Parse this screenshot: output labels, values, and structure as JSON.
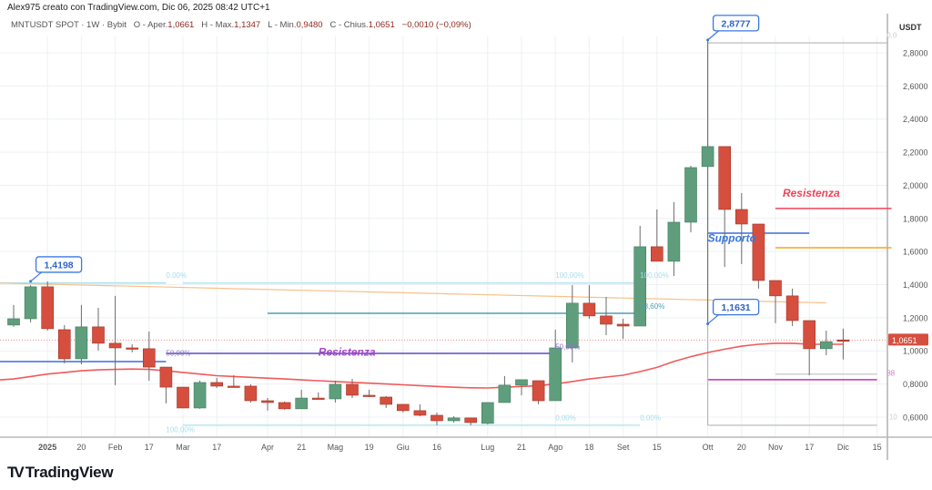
{
  "header": {
    "credit": "Alex975 creato con TradingView.com, Dic 06, 2025 08:42 UTC+1",
    "symbol": "MNTUSDT SPOT · 1W · Bybit",
    "open_label": "O - Aper.",
    "open": "1,0661",
    "high_label": "H - Max.",
    "high": "1,1347",
    "low_label": "L - Min.",
    "low": "0,9480",
    "close_label": "C - Chius.",
    "close": "1,0651",
    "change": "−0,0010 (−0,09%)"
  },
  "price_axis": {
    "unit": "USDT",
    "ticks": [
      "2,8000",
      "2,6000",
      "2,4000",
      "2,2000",
      "2,0000",
      "1,8000",
      "1,6000",
      "1,4000",
      "1,2000",
      "1,0000",
      "0,8000",
      "0,6000"
    ],
    "current_price_label": "1,0651",
    "current_price": 1.0651
  },
  "time_axis": {
    "ticks": [
      {
        "label": "2025",
        "date": "2025-01-06"
      },
      {
        "label": "20",
        "date": "2025-01-20"
      },
      {
        "label": "Feb",
        "date": "2025-02-03"
      },
      {
        "label": "17",
        "date": "2025-02-17"
      },
      {
        "label": "Mar",
        "date": "2025-03-03"
      },
      {
        "label": "17",
        "date": "2025-03-17"
      },
      {
        "label": "Apr",
        "date": "2025-04-07"
      },
      {
        "label": "21",
        "date": "2025-04-21"
      },
      {
        "label": "Mag",
        "date": "2025-05-05"
      },
      {
        "label": "19",
        "date": "2025-05-19"
      },
      {
        "label": "Giu",
        "date": "2025-06-02"
      },
      {
        "label": "16",
        "date": "2025-06-16"
      },
      {
        "label": "Lug",
        "date": "2025-07-07"
      },
      {
        "label": "21",
        "date": "2025-07-21"
      },
      {
        "label": "Ago",
        "date": "2025-08-04"
      },
      {
        "label": "18",
        "date": "2025-08-18"
      },
      {
        "label": "Set",
        "date": "2025-09-01"
      },
      {
        "label": "15",
        "date": "2025-09-15"
      },
      {
        "label": "Ott",
        "date": "2025-10-06"
      },
      {
        "label": "20",
        "date": "2025-10-20"
      },
      {
        "label": "Nov",
        "date": "2025-11-03"
      },
      {
        "label": "17",
        "date": "2025-11-17"
      },
      {
        "label": "Dic",
        "date": "2025-12-01"
      },
      {
        "label": "15",
        "date": "2025-12-15"
      }
    ]
  },
  "colors": {
    "up": "#5f9e7c",
    "down": "#d64f3e",
    "ma": "#f05a5a",
    "grid": "#eef0f3"
  },
  "chart_data": {
    "type": "candlestick",
    "ylim": [
      0.48,
      2.98
    ],
    "columns": [
      "date",
      "open",
      "high",
      "low",
      "close"
    ],
    "candles": [
      [
        "2024-12-23",
        1.156,
        1.277,
        1.145,
        1.194
      ],
      [
        "2024-12-30",
        1.194,
        1.397,
        1.172,
        1.387
      ],
      [
        "2025-01-06",
        1.387,
        1.4198,
        1.122,
        1.134
      ],
      [
        "2025-01-13",
        1.128,
        1.156,
        0.925,
        0.952
      ],
      [
        "2025-01-20",
        0.952,
        1.277,
        0.919,
        1.145
      ],
      [
        "2025-01-27",
        1.145,
        1.26,
        1.002,
        1.046
      ],
      [
        "2025-02-03",
        1.046,
        1.332,
        0.793,
        1.018
      ],
      [
        "2025-02-10",
        1.018,
        1.04,
        0.991,
        1.013
      ],
      [
        "2025-02-17",
        1.013,
        1.117,
        0.82,
        0.902
      ],
      [
        "2025-02-24",
        0.902,
        0.902,
        0.683,
        0.781
      ],
      [
        "2025-03-03",
        0.781,
        0.781,
        0.655,
        0.655
      ],
      [
        "2025-03-10",
        0.655,
        0.82,
        0.65,
        0.809
      ],
      [
        "2025-03-17",
        0.809,
        0.837,
        0.776,
        0.787
      ],
      [
        "2025-03-24",
        0.787,
        0.853,
        0.781,
        0.781
      ],
      [
        "2025-03-31",
        0.787,
        0.798,
        0.688,
        0.699
      ],
      [
        "2025-04-07",
        0.699,
        0.715,
        0.639,
        0.688
      ],
      [
        "2025-04-14",
        0.688,
        0.694,
        0.645,
        0.65
      ],
      [
        "2025-04-21",
        0.65,
        0.765,
        0.65,
        0.715
      ],
      [
        "2025-04-28",
        0.715,
        0.749,
        0.71,
        0.713
      ],
      [
        "2025-05-05",
        0.71,
        0.82,
        0.688,
        0.798
      ],
      [
        "2025-05-12",
        0.798,
        0.831,
        0.715,
        0.732
      ],
      [
        "2025-05-19",
        0.732,
        0.765,
        0.721,
        0.727
      ],
      [
        "2025-05-26",
        0.721,
        0.727,
        0.655,
        0.677
      ],
      [
        "2025-06-02",
        0.677,
        0.677,
        0.628,
        0.639
      ],
      [
        "2025-06-09",
        0.639,
        0.677,
        0.605,
        0.611
      ],
      [
        "2025-06-16",
        0.611,
        0.628,
        0.551,
        0.578
      ],
      [
        "2025-06-23",
        0.578,
        0.605,
        0.567,
        0.595
      ],
      [
        "2025-06-30",
        0.595,
        0.595,
        0.551,
        0.567
      ],
      [
        "2025-07-07",
        0.562,
        0.688,
        0.556,
        0.688
      ],
      [
        "2025-07-14",
        0.688,
        0.848,
        0.688,
        0.793
      ],
      [
        "2025-07-21",
        0.793,
        0.826,
        0.732,
        0.826
      ],
      [
        "2025-07-28",
        0.82,
        0.82,
        0.677,
        0.699
      ],
      [
        "2025-08-04",
        0.699,
        1.128,
        0.699,
        1.018
      ],
      [
        "2025-08-11",
        1.018,
        1.397,
        0.93,
        1.288
      ],
      [
        "2025-08-18",
        1.288,
        1.397,
        1.194,
        1.211
      ],
      [
        "2025-08-25",
        1.211,
        1.326,
        1.095,
        1.161
      ],
      [
        "2025-09-01",
        1.161,
        1.194,
        1.073,
        1.15
      ],
      [
        "2025-09-08",
        1.15,
        1.755,
        1.15,
        1.629
      ],
      [
        "2025-09-15",
        1.629,
        1.854,
        1.541,
        1.541
      ],
      [
        "2025-09-22",
        1.541,
        1.898,
        1.452,
        1.777
      ],
      [
        "2025-09-29",
        1.777,
        2.118,
        1.716,
        2.107
      ],
      [
        "2025-10-06",
        2.113,
        2.8777,
        1.1631,
        2.234
      ],
      [
        "2025-10-13",
        2.234,
        2.234,
        1.507,
        1.854
      ],
      [
        "2025-10-20",
        1.854,
        1.953,
        1.524,
        1.766
      ],
      [
        "2025-10-27",
        1.766,
        1.766,
        1.376,
        1.425
      ],
      [
        "2025-11-03",
        1.425,
        1.425,
        1.167,
        1.332
      ],
      [
        "2025-11-10",
        1.332,
        1.376,
        1.15,
        1.183
      ],
      [
        "2025-11-17",
        1.183,
        1.183,
        0.853,
        1.013
      ],
      [
        "2025-11-24",
        1.013,
        1.122,
        0.974,
        1.056
      ],
      [
        "2025-12-01",
        1.0661,
        1.1347,
        0.948,
        1.0651
      ]
    ],
    "moving_average": [
      0.83,
      0.845,
      0.86,
      0.87,
      0.88,
      0.885,
      0.888,
      0.89,
      0.888,
      0.88,
      0.87,
      0.86,
      0.85,
      0.845,
      0.84,
      0.835,
      0.83,
      0.825,
      0.82,
      0.815,
      0.81,
      0.805,
      0.8,
      0.795,
      0.79,
      0.785,
      0.78,
      0.777,
      0.776,
      0.78,
      0.785,
      0.79,
      0.8,
      0.815,
      0.83,
      0.842,
      0.853,
      0.875,
      0.9,
      0.936,
      0.965,
      0.99,
      1.01,
      1.028,
      1.04,
      1.046,
      1.046,
      1.04,
      1.04,
      1.04
    ]
  },
  "drawings": {
    "lines": [
      {
        "name": "fib-left-0-line",
        "from": "2024-12-16",
        "to": "2025-02-24",
        "price": 1.41,
        "color": "#a8e0ee"
      },
      {
        "name": "fib-0-line",
        "from": "2025-03-03",
        "to": "2025-09-08",
        "price": 1.41,
        "color": "#b6e6f2"
      },
      {
        "name": "fib-786-line",
        "from": "2025-04-07",
        "to": "2025-09-08",
        "price": 1.227,
        "color": "#4a9fb5"
      },
      {
        "name": "fib-100-line",
        "from": "2025-03-03",
        "to": "2025-09-08",
        "price": 0.551,
        "color": "#b6e6f2"
      },
      {
        "name": "resistance-purple-line",
        "from": "2025-02-24",
        "to": "2025-08-04",
        "price": 0.985,
        "color": "#5b4bc4"
      },
      {
        "name": "blue-left-line",
        "from": "2024-12-16",
        "to": "2025-02-24",
        "price": 0.935,
        "color": "#3a6fd8"
      },
      {
        "name": "support-line",
        "from": "2025-10-06",
        "to": "2025-11-17",
        "price": 1.711,
        "color": "#3a6fd8"
      },
      {
        "name": "resistance-red-line",
        "from": "2025-11-03",
        "to": "2025-12-21",
        "price": 1.86,
        "color": "#f0435a"
      },
      {
        "name": "orange-level-line",
        "from": "2025-11-03",
        "to": "2025-12-21",
        "price": 1.623,
        "color": "#f5a623"
      },
      {
        "name": "fib-top-line",
        "from": "2025-10-06",
        "to": "2025-12-19",
        "price": 2.86,
        "color": "#c8c8c8"
      },
      {
        "name": "fib-88-line",
        "from": "2025-11-03",
        "to": "2025-12-15",
        "price": 0.86,
        "color": "#cfcfcf"
      },
      {
        "name": "magenta-level-line",
        "from": "2025-10-06",
        "to": "2025-12-15",
        "price": 0.826,
        "color": "#c42fb4"
      },
      {
        "name": "fib-bottom-line",
        "from": "2025-10-06",
        "to": "2025-12-15",
        "price": 0.551,
        "color": "#c8c8c8"
      }
    ],
    "trendline": {
      "from": "2024-12-16",
      "from_price": 1.41,
      "to": "2025-11-24",
      "to_price": 1.29,
      "color": "#f8c08a"
    },
    "vertical_line": {
      "date": "2025-10-06",
      "from_price": 0.551,
      "to_price": 2.8777,
      "color": "#b8b8b8"
    },
    "texts": [
      {
        "text": "Resistenza",
        "date": "2025-04-28",
        "price": 0.97,
        "color": "#a346c4",
        "size": 12
      },
      {
        "text": "Supporto",
        "date": "2025-10-06",
        "price": 1.66,
        "color": "#3a78e0",
        "size": 12
      },
      {
        "text": "Resistenza",
        "date": "2025-11-06",
        "price": 1.93,
        "color": "#f0435a",
        "size": 12
      },
      {
        "text": "0,00%",
        "date": "2025-02-24",
        "price": 1.44,
        "color": "#a9dcea",
        "size": 8
      },
      {
        "text": "50,00%",
        "date": "2025-02-24",
        "price": 0.97,
        "color": "#8a74c8",
        "size": 8
      },
      {
        "text": "100,00%",
        "date": "2025-02-24",
        "price": 0.51,
        "color": "#a9dcea",
        "size": 8
      },
      {
        "text": "100,00%",
        "date": "2025-08-04",
        "price": 1.44,
        "color": "#a9dcea",
        "size": 8
      },
      {
        "text": "50,00%",
        "date": "2025-08-04",
        "price": 1.01,
        "color": "#8a74c8",
        "size": 8
      },
      {
        "text": "0,00%",
        "date": "2025-08-04",
        "price": 0.58,
        "color": "#a9dcea",
        "size": 8
      },
      {
        "text": "100,00%",
        "date": "2025-09-08",
        "price": 1.44,
        "color": "#a9dcea",
        "size": 8
      },
      {
        "text": "78,60%",
        "date": "2025-09-08",
        "price": 1.255,
        "color": "#4a9fb5",
        "size": 8
      },
      {
        "text": "0,00%",
        "date": "2025-09-08",
        "price": 0.58,
        "color": "#a9dcea",
        "size": 8
      },
      {
        "text": "0,0",
        "date": "2025-12-19",
        "price": 2.89,
        "color": "#cccccc",
        "size": 8
      },
      {
        "text": "88",
        "date": "2025-12-19",
        "price": 0.85,
        "color": "#d07ac8",
        "size": 8
      },
      {
        "text": "10",
        "date": "2025-12-20",
        "price": 0.585,
        "color": "#cccccc",
        "size": 8
      }
    ],
    "callouts": [
      {
        "text": "1,4198",
        "date": "2024-12-30",
        "price": 1.4198
      },
      {
        "text": "2,8777",
        "date": "2025-10-06",
        "price": 2.8777
      },
      {
        "text": "1,1631",
        "date": "2025-10-06",
        "price": 1.1631
      }
    ]
  },
  "footer": {
    "logo_text": "TradingView"
  }
}
